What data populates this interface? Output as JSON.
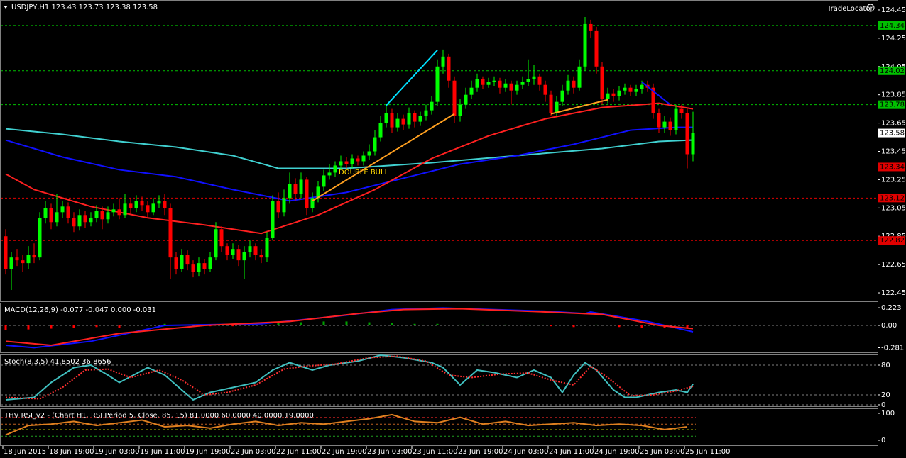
{
  "chart_data": [
    {
      "type": "candlestick",
      "title": "USDJPY,H1  123.43 123.73 123.38 123.58",
      "brand": "TradeLocator",
      "annotation": "DOUBLE BULL",
      "x_labels": [
        "18 Jun 2015",
        "18 Jun 19:00",
        "19 Jun 03:00",
        "19 Jun 11:00",
        "19 Jun 19:00",
        "22 Jun 03:00",
        "22 Jun 11:00",
        "22 Jun 19:00",
        "23 Jun 03:00",
        "23 Jun 11:00",
        "23 Jun 19:00",
        "24 Jun 03:00",
        "24 Jun 11:00",
        "24 Jun 19:00",
        "25 Jun 03:00",
        "25 Jun 11:00"
      ],
      "open": [
        122.85,
        122.62,
        122.7,
        122.68,
        122.66,
        122.72,
        122.7,
        122.98,
        123.05,
        122.95,
        123.02,
        123.06,
        122.98,
        122.92,
        123.0,
        122.95,
        122.98,
        123.03,
        122.97,
        123.02,
        123.04,
        123.0,
        123.08,
        123.05,
        123.1,
        123.07,
        123.02,
        123.08,
        123.1,
        123.05,
        122.7,
        122.62,
        122.72,
        122.65,
        122.6,
        122.66,
        122.62,
        122.7,
        122.9,
        122.78,
        122.72,
        122.76,
        122.68,
        122.74,
        122.78,
        122.72,
        122.7,
        122.84,
        123.1,
        123.02,
        123.12,
        123.22,
        123.15,
        123.25,
        123.05,
        123.12,
        123.2,
        123.28,
        123.3,
        123.35,
        123.38,
        123.36,
        123.4,
        123.38,
        123.42,
        123.45,
        123.55,
        123.65,
        123.72,
        123.62,
        123.68,
        123.64,
        123.72,
        123.66,
        123.7,
        123.74,
        123.8,
        124.05,
        124.12,
        123.95,
        123.7,
        123.78,
        123.85,
        123.9,
        123.96,
        123.92,
        123.94,
        123.95,
        123.9,
        123.93,
        123.88,
        123.92,
        123.94,
        123.96,
        123.98,
        123.92,
        123.85,
        123.72,
        123.8,
        123.88,
        123.95,
        123.9,
        124.05,
        124.35,
        124.3,
        124.05,
        123.82,
        123.86,
        123.84,
        123.88,
        123.9,
        123.87,
        123.89,
        123.92,
        123.9,
        123.72,
        123.62,
        123.66,
        123.6,
        123.75,
        123.72,
        123.43
      ],
      "high": [
        122.9,
        122.74,
        122.76,
        122.72,
        122.78,
        122.8,
        123.02,
        123.1,
        123.08,
        123.15,
        123.1,
        123.09,
        123.02,
        123.04,
        123.03,
        123.02,
        123.07,
        123.06,
        123.06,
        123.08,
        123.12,
        123.15,
        123.12,
        123.14,
        123.13,
        123.1,
        123.12,
        123.14,
        123.15,
        123.08,
        122.74,
        122.76,
        122.75,
        122.68,
        122.7,
        122.69,
        122.74,
        122.95,
        122.92,
        122.8,
        122.8,
        122.79,
        122.78,
        122.82,
        122.8,
        122.76,
        122.88,
        123.14,
        123.16,
        123.18,
        123.3,
        123.26,
        123.3,
        123.27,
        123.16,
        123.24,
        123.32,
        123.36,
        123.38,
        123.42,
        123.41,
        123.43,
        123.42,
        123.45,
        123.5,
        123.6,
        123.7,
        123.78,
        123.75,
        123.72,
        123.71,
        123.76,
        123.74,
        123.73,
        123.78,
        123.84,
        124.1,
        124.17,
        124.14,
        123.98,
        123.82,
        123.9,
        123.95,
        124.0,
        123.98,
        123.97,
        123.98,
        123.97,
        123.96,
        123.95,
        123.95,
        123.98,
        124.1,
        124.06,
        124.0,
        123.95,
        123.88,
        123.84,
        123.92,
        123.99,
        123.98,
        124.1,
        124.4,
        124.38,
        124.33,
        124.08,
        123.9,
        123.89,
        123.91,
        123.93,
        123.92,
        123.92,
        123.95,
        123.95,
        123.93,
        123.75,
        123.7,
        123.69,
        123.78,
        123.78,
        123.75,
        123.73
      ],
      "low": [
        122.58,
        122.47,
        122.64,
        122.6,
        122.62,
        122.66,
        122.68,
        122.94,
        122.9,
        122.92,
        122.98,
        122.94,
        122.88,
        122.89,
        122.91,
        122.92,
        122.95,
        122.9,
        122.94,
        122.99,
        122.97,
        122.98,
        123.01,
        123.02,
        123.03,
        122.98,
        123.0,
        123.05,
        123.0,
        122.55,
        122.58,
        122.6,
        122.61,
        122.56,
        122.57,
        122.58,
        122.6,
        122.68,
        122.74,
        122.68,
        122.69,
        122.64,
        122.55,
        122.7,
        122.68,
        122.66,
        122.67,
        122.82,
        122.98,
        122.99,
        123.08,
        123.1,
        123.12,
        123.0,
        123.02,
        123.09,
        123.17,
        123.25,
        123.27,
        123.32,
        123.33,
        123.33,
        123.35,
        123.35,
        123.39,
        123.42,
        123.52,
        123.62,
        123.58,
        123.59,
        123.6,
        123.61,
        123.62,
        123.63,
        123.67,
        123.71,
        123.77,
        124.0,
        123.9,
        123.65,
        123.66,
        123.75,
        123.82,
        123.87,
        123.89,
        123.9,
        123.91,
        123.86,
        123.87,
        123.78,
        123.85,
        123.89,
        123.91,
        123.92,
        123.88,
        123.8,
        123.7,
        123.7,
        123.77,
        123.85,
        123.86,
        123.88,
        124.02,
        124.25,
        124.0,
        123.78,
        123.79,
        123.8,
        123.81,
        123.85,
        123.84,
        123.84,
        123.86,
        123.87,
        123.68,
        123.58,
        123.58,
        123.56,
        123.57,
        123.68,
        123.33,
        123.38
      ],
      "close": [
        122.62,
        122.7,
        122.68,
        122.66,
        122.72,
        122.7,
        122.98,
        123.05,
        122.95,
        123.02,
        123.06,
        122.98,
        122.92,
        123.0,
        122.95,
        122.98,
        123.03,
        122.97,
        123.02,
        123.04,
        123.0,
        123.08,
        123.05,
        123.1,
        123.07,
        123.02,
        123.08,
        123.1,
        123.05,
        122.7,
        122.62,
        122.72,
        122.65,
        122.6,
        122.66,
        122.62,
        122.7,
        122.9,
        122.78,
        122.72,
        122.76,
        122.68,
        122.74,
        122.78,
        122.72,
        122.7,
        122.84,
        123.1,
        123.02,
        123.12,
        123.22,
        123.15,
        123.25,
        123.05,
        123.12,
        123.2,
        123.28,
        123.3,
        123.35,
        123.38,
        123.36,
        123.4,
        123.38,
        123.42,
        123.45,
        123.55,
        123.65,
        123.72,
        123.62,
        123.68,
        123.64,
        123.72,
        123.66,
        123.7,
        123.74,
        123.8,
        124.05,
        124.12,
        123.95,
        123.7,
        123.78,
        123.85,
        123.9,
        123.96,
        123.92,
        123.94,
        123.95,
        123.9,
        123.93,
        123.88,
        123.92,
        123.94,
        123.96,
        123.98,
        123.92,
        123.85,
        123.72,
        123.8,
        123.88,
        123.95,
        123.9,
        124.05,
        124.35,
        124.3,
        124.05,
        123.82,
        123.86,
        123.84,
        123.88,
        123.9,
        123.87,
        123.89,
        123.92,
        123.9,
        123.72,
        123.62,
        123.66,
        123.6,
        123.75,
        123.72,
        123.43,
        123.58
      ],
      "up_color": "#00ff00",
      "down_color": "#ff0000",
      "ylim": [
        122.39,
        124.515
      ],
      "yticks": [
        124.45,
        124.25,
        124.05,
        123.85,
        123.65,
        123.45,
        123.25,
        123.05,
        122.85,
        122.65,
        122.45
      ],
      "series": [
        {
          "color": "#40d0d0",
          "x": [
            0,
            10,
            20,
            30,
            40,
            48,
            60,
            75,
            90,
            105,
            115,
            121
          ],
          "values": [
            123.61,
            123.57,
            123.52,
            123.48,
            123.42,
            123.33,
            123.33,
            123.37,
            123.42,
            123.47,
            123.52,
            123.53
          ]
        },
        {
          "color": "#1010ff",
          "x": [
            0,
            10,
            20,
            30,
            40,
            50,
            60,
            70,
            80,
            90,
            100,
            110,
            118,
            121
          ],
          "values": [
            123.53,
            123.41,
            123.32,
            123.27,
            123.18,
            123.1,
            123.16,
            123.26,
            123.36,
            123.42,
            123.5,
            123.6,
            123.62,
            123.62
          ]
        },
        {
          "color": "#ff2020",
          "x": [
            0,
            5,
            15,
            25,
            35,
            45,
            55,
            65,
            75,
            85,
            95,
            105,
            115,
            121
          ],
          "values": [
            123.29,
            123.18,
            123.06,
            122.98,
            122.93,
            122.87,
            123.0,
            123.18,
            123.4,
            123.56,
            123.68,
            123.76,
            123.79,
            123.75
          ]
        }
      ],
      "levels": [
        {
          "value": 124.34,
          "color": "#00c000"
        },
        {
          "value": 124.02,
          "color": "#00c000"
        },
        {
          "value": 123.78,
          "color": "#00c000"
        },
        {
          "value": 123.34,
          "color": "#e00000"
        },
        {
          "value": 123.12,
          "color": "#e00000"
        },
        {
          "value": 122.82,
          "color": "#e00000"
        }
      ],
      "current_price": 123.58,
      "trendlines": [
        {
          "color": "#00e0ff",
          "x": [
            67,
            76
          ],
          "values": [
            123.775,
            124.165
          ]
        },
        {
          "color": "#ffa020",
          "x": [
            54,
            79
          ],
          "values": [
            123.1,
            123.715
          ]
        },
        {
          "color": "#ffa020",
          "x": [
            96,
            106
          ],
          "values": [
            123.715,
            123.815
          ]
        },
        {
          "color": "#1010ff",
          "x": [
            112,
            117
          ],
          "values": [
            123.94,
            123.78
          ]
        }
      ]
    },
    {
      "type": "macd",
      "title": "MACD(12,26,9) -0.077 -0.047 0.000 -0.031",
      "ylim": [
        -0.339,
        0.277
      ],
      "yticks": [
        0.223,
        {
          "value": 0,
          "label": "0.00"
        },
        -0.281
      ],
      "histogram": {
        "x": [
          0,
          4,
          8,
          12,
          16,
          20,
          24,
          28,
          32,
          36,
          40,
          44,
          48,
          52,
          56,
          60,
          64,
          68,
          72,
          76,
          80,
          84,
          88,
          92,
          96,
          100,
          104,
          108,
          112,
          116,
          120
        ],
        "values": [
          -0.06,
          -0.05,
          -0.04,
          -0.03,
          -0.02,
          -0.03,
          0.01,
          0.02,
          0.01,
          -0.01,
          -0.01,
          0.02,
          0.03,
          0.04,
          0.05,
          0.05,
          0.04,
          0.03,
          0.02,
          0.02,
          0.01,
          0.01,
          0.01,
          0.01,
          -0.01,
          -0.02,
          0.01,
          -0.02,
          -0.03,
          -0.03,
          -0.04
        ],
        "up_color": "#00a000",
        "down_color": "#ff0000"
      },
      "series": [
        {
          "color": "#1010ff",
          "x": [
            0,
            5,
            15,
            28,
            45,
            60,
            68,
            77,
            95,
            102,
            103,
            113,
            121
          ],
          "values": [
            -0.25,
            -0.28,
            -0.2,
            0.0,
            0.02,
            0.13,
            0.2,
            0.22,
            0.18,
            0.15,
            0.17,
            0.05,
            -0.08
          ]
        },
        {
          "color": "#ff2020",
          "x": [
            0,
            8,
            20,
            35,
            50,
            62,
            70,
            80,
            95,
            105,
            115,
            121
          ],
          "values": [
            -0.2,
            -0.25,
            -0.1,
            0.0,
            0.05,
            0.15,
            0.2,
            0.21,
            0.17,
            0.14,
            0.0,
            -0.04
          ]
        }
      ]
    },
    {
      "type": "line",
      "title": "Stoch(8,3,5) 41.8502 36.8656",
      "ylim": [
        -2.9,
        100
      ],
      "yticks": [
        80,
        20,
        0
      ],
      "grid": true,
      "series": [
        {
          "color": "#40c0c0",
          "x": [
            0,
            5,
            8,
            12,
            15,
            18,
            20,
            25,
            28,
            31,
            33,
            36,
            40,
            44,
            47,
            50,
            54,
            57,
            62,
            66,
            70,
            75,
            77,
            80,
            83,
            86,
            90,
            93,
            96,
            98,
            100,
            102,
            104,
            107,
            109,
            111,
            113,
            115,
            118,
            120,
            121
          ],
          "values": [
            10,
            15,
            45,
            75,
            80,
            60,
            45,
            75,
            60,
            30,
            10,
            25,
            35,
            45,
            70,
            85,
            70,
            80,
            88,
            100,
            95,
            85,
            75,
            40,
            70,
            65,
            55,
            70,
            55,
            25,
            60,
            85,
            70,
            30,
            15,
            15,
            20,
            25,
            30,
            25,
            42
          ]
        },
        {
          "color": "#ff3030",
          "dashed": true,
          "x": [
            0,
            6,
            10,
            14,
            18,
            22,
            27,
            31,
            35,
            39,
            44,
            49,
            53,
            58,
            64,
            69,
            74,
            78,
            82,
            87,
            92,
            96,
            100,
            103,
            106,
            110,
            114,
            118,
            121
          ],
          "values": [
            15,
            12,
            35,
            70,
            72,
            55,
            70,
            50,
            20,
            25,
            40,
            72,
            78,
            82,
            95,
            98,
            88,
            60,
            55,
            62,
            64,
            50,
            40,
            78,
            55,
            18,
            20,
            28,
            37
          ]
        }
      ]
    },
    {
      "type": "line",
      "title": "THV RSI_v2 - (Chart H1, RSI Period 5, Close, 85, 15) 81.0000 60.0000 40.0000 19.0000",
      "ylim": [
        -18.4,
        115.8
      ],
      "yticks": [
        100,
        0
      ],
      "levels": [
        {
          "value": 85,
          "color": "#c02020"
        },
        {
          "value": 60,
          "color": "#c06020"
        },
        {
          "value": 40,
          "color": "#808000"
        },
        {
          "value": 15,
          "color": "#20a020"
        }
      ],
      "series": [
        {
          "color": "#e08020",
          "x": [
            0,
            4,
            8,
            12,
            16,
            20,
            24,
            28,
            32,
            36,
            40,
            44,
            48,
            52,
            56,
            60,
            64,
            68,
            72,
            76,
            80,
            84,
            88,
            92,
            96,
            100,
            104,
            108,
            112,
            116,
            120
          ],
          "values": [
            20,
            55,
            60,
            70,
            55,
            65,
            75,
            50,
            55,
            45,
            60,
            70,
            55,
            65,
            60,
            70,
            80,
            95,
            70,
            65,
            85,
            60,
            70,
            55,
            60,
            65,
            55,
            60,
            55,
            40,
            50
          ]
        }
      ]
    }
  ]
}
